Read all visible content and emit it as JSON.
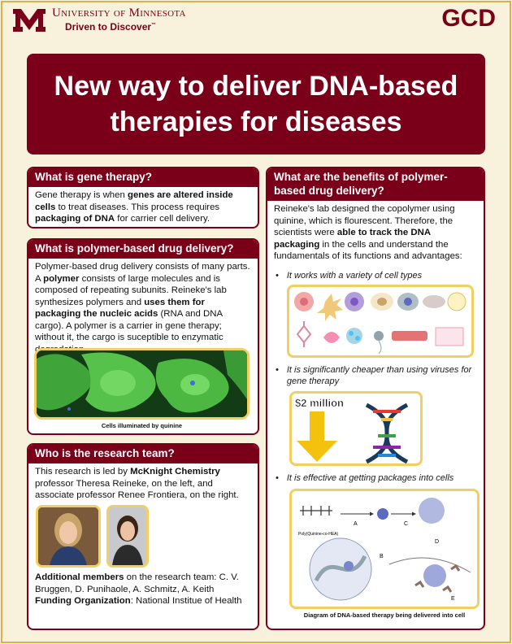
{
  "header": {
    "university": "University of Minnesota",
    "tagline": "Driven to Discover",
    "tagline_mark": "™",
    "org": "GCD"
  },
  "title": "New way to deliver DNA-based therapies for diseases",
  "gene_therapy": {
    "heading": "What is gene therapy?",
    "t1": "Gene therapy is when ",
    "b1": "genes are altered inside cells",
    "t2": " to treat diseases. This process requires ",
    "b2": "packaging of DNA",
    "t3": " for carrier cell delivery."
  },
  "polymer": {
    "heading": "What is polymer-based drug delivery?",
    "t1": "Polymer-based drug delivery consists of many parts. A ",
    "b1": "polymer",
    "t2": " consists of large molecules and is composed of repeating subunits. Reineke's lab synthesizes polymers and ",
    "b2": "uses them for packaging the nucleic acids",
    "t3": " (RNA and DNA cargo). A polymer is a carrier in gene therapy; without it, the cargo is suceptible to enzymatic degredation.",
    "caption": "Cells illuminated by quinine"
  },
  "team": {
    "heading": "Who is the research team?",
    "t1": "This research is led by ",
    "b1": "McKnight Chemistry",
    "t2": " professor Theresa Reineke, on the left, and associate professor Renee Frontiera, on the right.",
    "members_label": "Additional members",
    "members_text": " on the research team: C. V. Bruggen, D. Punihaole, A. Schmitz, A. Keith",
    "funding_label": "Funding Organization",
    "funding_text": ": National Institue of Health"
  },
  "benefits": {
    "heading": "What are the benefits of polymer-based drug delivery?",
    "t1": "Reineke's lab designed the copolymer using quinine, which is flourescent. Therefore, the scientists were ",
    "b1": "able to track the DNA packaging",
    "t2": " in the cells and understand the fundamentals of its functions and advantages:",
    "bullet_symbol": "•",
    "bullet1": "It works with a variety of cell types",
    "bullet2": "It is significantly cheaper than using viruses for gene therapy",
    "cost_label": "$2 million",
    "bullet3": "It is effective at getting packages into cells",
    "diagram_polymer": "Poly(Quinine-co-HEA)",
    "diagram_labels": [
      "A",
      "B",
      "C",
      "D",
      "E"
    ],
    "caption": "Diagram of DNA-based therapy being delivered into cell"
  },
  "colors": {
    "maroon": "#7a0019",
    "gold": "#f2cf62",
    "background": "#f8f1dc"
  }
}
